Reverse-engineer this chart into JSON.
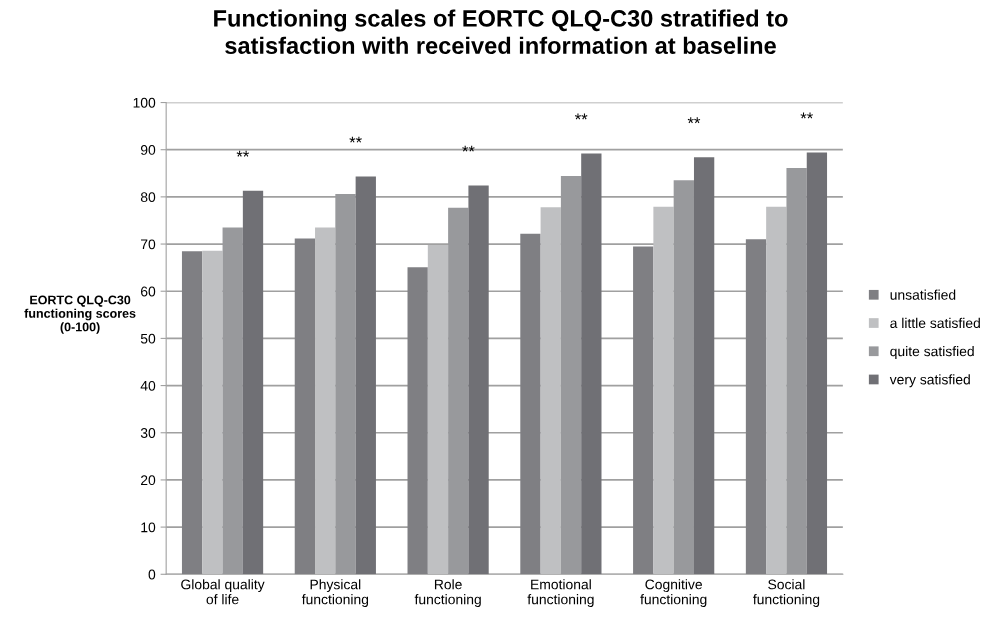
{
  "chart_data": {
    "type": "bar",
    "title": "Functioning scales of EORTC QLQ-C30 stratified to\nsatisfaction with received information at baseline",
    "ylabel": "EORTC QLQ-C30\nfunctioning scores\n(0-100)",
    "categories": [
      "Global quality\nof life",
      "Physical\nfunctioning",
      "Role\nfunctioning",
      "Emotional\nfunctioning",
      "Cognitive\nfunctioning",
      "Social\nfunctioning"
    ],
    "series": [
      {
        "name": "unsatisfied",
        "color": "#7f7f83",
        "values": [
          68.5,
          71.2,
          65.1,
          72.2,
          69.5,
          71.0
        ]
      },
      {
        "name": "a little satisfied",
        "color": "#bfc0c2",
        "values": [
          68.6,
          73.5,
          69.8,
          77.8,
          77.9,
          77.9
        ]
      },
      {
        "name": "quite satisfied",
        "color": "#98999c",
        "values": [
          73.5,
          80.6,
          77.7,
          84.4,
          83.5,
          86.1
        ]
      },
      {
        "name": "very satisfied",
        "color": "#707075",
        "values": [
          81.3,
          84.3,
          82.4,
          89.2,
          88.4,
          89.4
        ]
      }
    ],
    "annotations": [
      "**",
      "**",
      "**",
      "**",
      "**",
      "**"
    ],
    "ylim": [
      0,
      100
    ],
    "yticks": [
      0,
      10,
      20,
      30,
      40,
      50,
      60,
      70,
      80,
      90,
      100
    ],
    "grid": "y",
    "legend": "right"
  }
}
